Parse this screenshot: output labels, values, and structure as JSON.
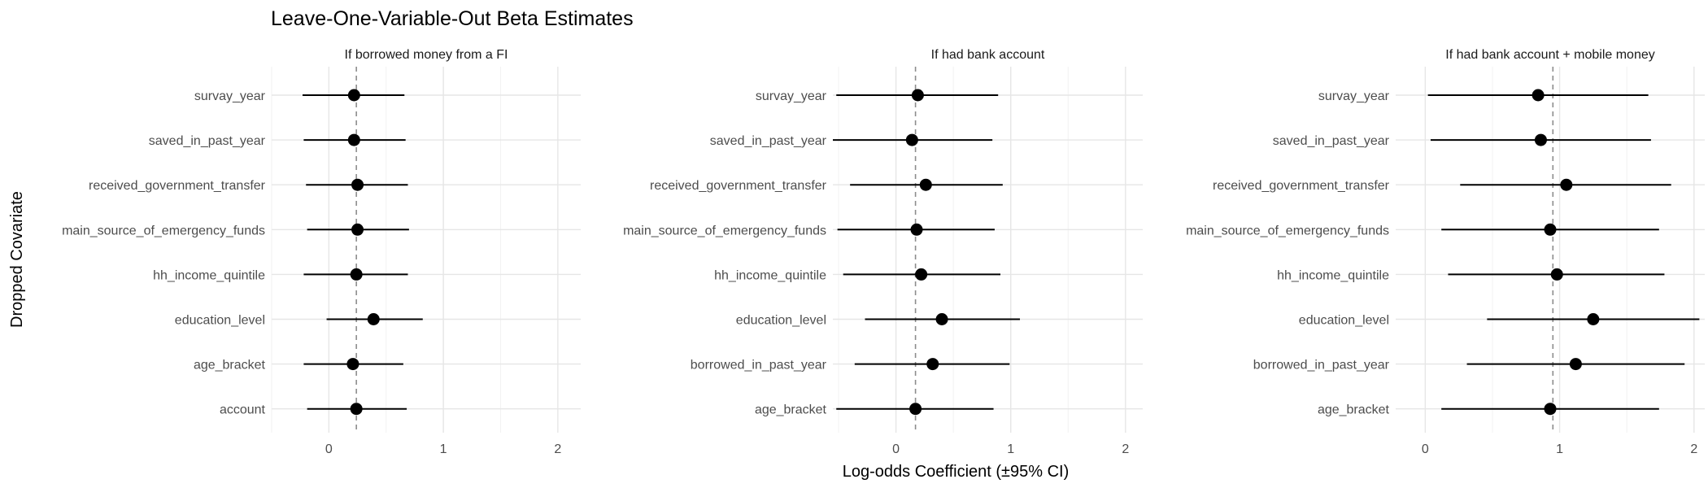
{
  "figure": {
    "title": "Leave-One-Variable-Out Beta Estimates",
    "xlabel": "Log-odds Coefficient (±95% CI)",
    "ylabel": "Dropped Covariate"
  },
  "chart_data": [
    {
      "type": "scatter",
      "subtype": "forest-plot",
      "panel_title": "If borrowed money from a FI",
      "xlim": [
        -0.5,
        2.2
      ],
      "xticks": [
        0,
        1,
        2
      ],
      "reference_line": 0.24,
      "grid": true,
      "rows": [
        {
          "label": "survay_year",
          "estimate": 0.22,
          "lower": -0.23,
          "upper": 0.66
        },
        {
          "label": "saved_in_past_year",
          "estimate": 0.22,
          "lower": -0.22,
          "upper": 0.67
        },
        {
          "label": "received_government_transfer",
          "estimate": 0.25,
          "lower": -0.2,
          "upper": 0.69
        },
        {
          "label": "main_source_of_emergency_funds",
          "estimate": 0.25,
          "lower": -0.19,
          "upper": 0.7
        },
        {
          "label": "hh_income_quintile",
          "estimate": 0.24,
          "lower": -0.22,
          "upper": 0.69
        },
        {
          "label": "education_level",
          "estimate": 0.39,
          "lower": -0.02,
          "upper": 0.82
        },
        {
          "label": "age_bracket",
          "estimate": 0.21,
          "lower": -0.22,
          "upper": 0.65
        },
        {
          "label": "account",
          "estimate": 0.24,
          "lower": -0.19,
          "upper": 0.68
        }
      ]
    },
    {
      "type": "scatter",
      "subtype": "forest-plot",
      "panel_title": "If had bank account",
      "xlim": [
        -0.55,
        2.15
      ],
      "xticks": [
        0,
        1,
        2
      ],
      "reference_line": 0.17,
      "grid": true,
      "rows": [
        {
          "label": "survay_year",
          "estimate": 0.19,
          "lower": -0.52,
          "upper": 0.89
        },
        {
          "label": "saved_in_past_year",
          "estimate": 0.14,
          "lower": -0.55,
          "upper": 0.84
        },
        {
          "label": "received_government_transfer",
          "estimate": 0.26,
          "lower": -0.4,
          "upper": 0.93
        },
        {
          "label": "main_source_of_emergency_funds",
          "estimate": 0.18,
          "lower": -0.51,
          "upper": 0.86
        },
        {
          "label": "hh_income_quintile",
          "estimate": 0.22,
          "lower": -0.46,
          "upper": 0.91
        },
        {
          "label": "education_level",
          "estimate": 0.4,
          "lower": -0.27,
          "upper": 1.08
        },
        {
          "label": "borrowed_in_past_year",
          "estimate": 0.32,
          "lower": -0.36,
          "upper": 0.99
        },
        {
          "label": "age_bracket",
          "estimate": 0.17,
          "lower": -0.52,
          "upper": 0.85
        }
      ]
    },
    {
      "type": "scatter",
      "subtype": "forest-plot",
      "panel_title": "If had bank account + mobile money",
      "xlim": [
        -0.22,
        2.08
      ],
      "xticks": [
        0,
        1,
        2
      ],
      "reference_line": 0.95,
      "grid": true,
      "rows": [
        {
          "label": "survay_year",
          "estimate": 0.84,
          "lower": 0.02,
          "upper": 1.66
        },
        {
          "label": "saved_in_past_year",
          "estimate": 0.86,
          "lower": 0.04,
          "upper": 1.68
        },
        {
          "label": "received_government_transfer",
          "estimate": 1.05,
          "lower": 0.26,
          "upper": 1.83
        },
        {
          "label": "main_source_of_emergency_funds",
          "estimate": 0.93,
          "lower": 0.12,
          "upper": 1.74
        },
        {
          "label": "hh_income_quintile",
          "estimate": 0.98,
          "lower": 0.17,
          "upper": 1.78
        },
        {
          "label": "education_level",
          "estimate": 1.25,
          "lower": 0.46,
          "upper": 2.04
        },
        {
          "label": "borrowed_in_past_year",
          "estimate": 1.12,
          "lower": 0.31,
          "upper": 1.93
        },
        {
          "label": "age_bracket",
          "estimate": 0.93,
          "lower": 0.12,
          "upper": 1.74
        }
      ]
    }
  ]
}
